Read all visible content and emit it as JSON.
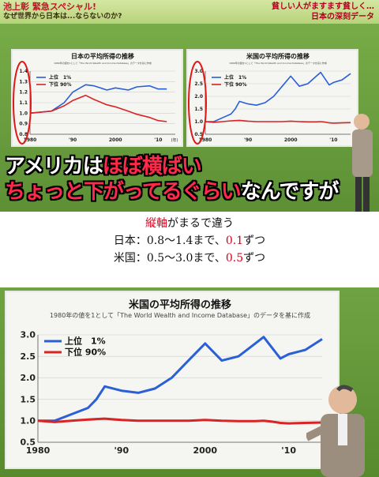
{
  "top_panel": {
    "show_title_line1": "池上彰 緊急スペシャル!",
    "show_title_line2": "なぜ世界から日本は...ならないのか?",
    "topic_line1": "貧しい人がますます貧しく…",
    "topic_line2": "日本の深刻データ",
    "subtitle_line1_a": "アメリカは",
    "subtitle_line1_b": "ほぼ横ばい",
    "subtitle_line2_a": "ちょっと下がってるぐらい",
    "subtitle_line2_b": "なんですが"
  },
  "caption": {
    "line1_a": "縦軸",
    "line1_b": "がまるで違う",
    "line2_a": "日本：0.8〜1.4まで、",
    "line2_b": "0.1",
    "line2_c": "ずつ",
    "line3_a": "米国：0.5〜3.0まで、",
    "line3_b": "0.5",
    "line3_c": "ずつ"
  },
  "chart_data": [
    {
      "type": "line",
      "title": "日本の平均所得の推移",
      "note": "1980年の値を1として「The World Wealth and Income Database」のデータを基に作成",
      "ylim": [
        0.8,
        1.4
      ],
      "yticks": [
        "0.8",
        "0.9",
        "1.0",
        "1.1",
        "1.2",
        "1.3",
        "1.4"
      ],
      "xticks": [
        "1980",
        "'90",
        "2000",
        "'10"
      ],
      "xticks_unit": "(年)",
      "x": [
        1980,
        1985,
        1988,
        1990,
        1993,
        1995,
        1998,
        2000,
        2003,
        2005,
        2008,
        2010,
        2012
      ],
      "series": [
        {
          "name": "上位　1%",
          "color": "#2a5fd6",
          "values": [
            1.0,
            1.02,
            1.1,
            1.2,
            1.27,
            1.26,
            1.22,
            1.24,
            1.22,
            1.25,
            1.26,
            1.23,
            1.23
          ]
        },
        {
          "name": "下位 90%",
          "color": "#d82424",
          "values": [
            1.0,
            1.02,
            1.07,
            1.12,
            1.17,
            1.13,
            1.08,
            1.06,
            1.02,
            0.99,
            0.96,
            0.93,
            0.92
          ]
        }
      ]
    },
    {
      "type": "line",
      "title": "米国の平均所得の推移",
      "note": "1980年の値を1として「The World Wealth and Income Database」のデータを基に作成",
      "ylim": [
        0.5,
        3.0
      ],
      "yticks": [
        "0.5",
        "1.0",
        "1.5",
        "2.0",
        "2.5",
        "3.0"
      ],
      "xticks": [
        "1980",
        "'90",
        "2000",
        "'10"
      ],
      "x": [
        1980,
        1982,
        1984,
        1986,
        1987,
        1988,
        1990,
        1992,
        1994,
        1996,
        1998,
        2000,
        2002,
        2004,
        2006,
        2007,
        2008,
        2009,
        2010,
        2012,
        2014
      ],
      "series": [
        {
          "name": "上位　1%",
          "color": "#2a5fd6",
          "values": [
            1.0,
            1.0,
            1.15,
            1.3,
            1.5,
            1.8,
            1.7,
            1.65,
            1.75,
            2.0,
            2.4,
            2.8,
            2.4,
            2.5,
            2.8,
            2.95,
            2.7,
            2.45,
            2.55,
            2.65,
            2.9
          ]
        },
        {
          "name": "下位 90%",
          "color": "#d82424",
          "values": [
            1.0,
            0.97,
            1.0,
            1.03,
            1.04,
            1.05,
            1.02,
            1.0,
            1.0,
            1.0,
            1.0,
            1.02,
            1.0,
            0.99,
            0.99,
            1.0,
            0.98,
            0.95,
            0.94,
            0.95,
            0.96
          ]
        }
      ]
    }
  ]
}
